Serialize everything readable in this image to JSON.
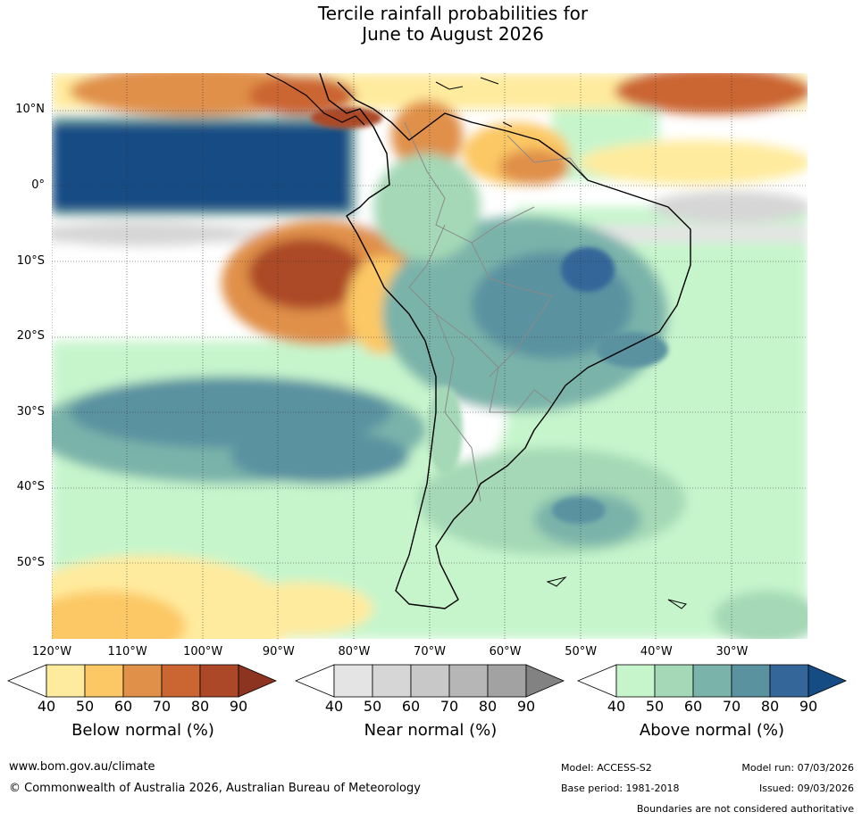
{
  "title": {
    "line1": "Tercile rainfall probabilities for",
    "line2": "June to August 2026"
  },
  "map": {
    "lat_labels": [
      "10°N",
      "0°",
      "10°S",
      "20°S",
      "30°S",
      "40°S",
      "50°S"
    ],
    "lon_labels": [
      "120°W",
      "110°W",
      "100°W",
      "90°W",
      "80°W",
      "70°W",
      "60°W",
      "50°W",
      "40°W",
      "30°W"
    ],
    "lat_values": [
      10,
      0,
      -10,
      -20,
      -30,
      -40,
      -50
    ],
    "lon_values": [
      -120,
      -110,
      -100,
      -90,
      -80,
      -70,
      -60,
      -50,
      -40,
      -30
    ]
  },
  "legend": {
    "ticks": [
      "40",
      "50",
      "60",
      "70",
      "80",
      "90"
    ],
    "below": {
      "title": "Below normal (%)",
      "colors": [
        "#ffffff",
        "#ffeb9e",
        "#fcc865",
        "#e09048",
        "#cb6532",
        "#ac4828",
        "#8c3420"
      ]
    },
    "near": {
      "title": "Near normal (%)",
      "colors": [
        "#ffffff",
        "#e4e4e4",
        "#d6d6d6",
        "#c8c8c8",
        "#b6b6b6",
        "#a2a2a2",
        "#828282"
      ]
    },
    "above": {
      "title": "Above normal (%)",
      "colors": [
        "#ffffff",
        "#c6f5cc",
        "#a4d8b6",
        "#7ab3aa",
        "#5a92a0",
        "#34669a",
        "#154c84"
      ]
    }
  },
  "footer": {
    "url": "www.bom.gov.au/climate",
    "copyright": "© Commonwealth of Australia 2026, Australian Bureau of Meteorology",
    "model": "Model: ACCESS-S2",
    "model_run": "Model run: 07/03/2026",
    "base_period": "Base period: 1981-2018",
    "issued": "Issued: 09/03/2026",
    "disclaimer": "Boundaries are not considered authoritative"
  }
}
